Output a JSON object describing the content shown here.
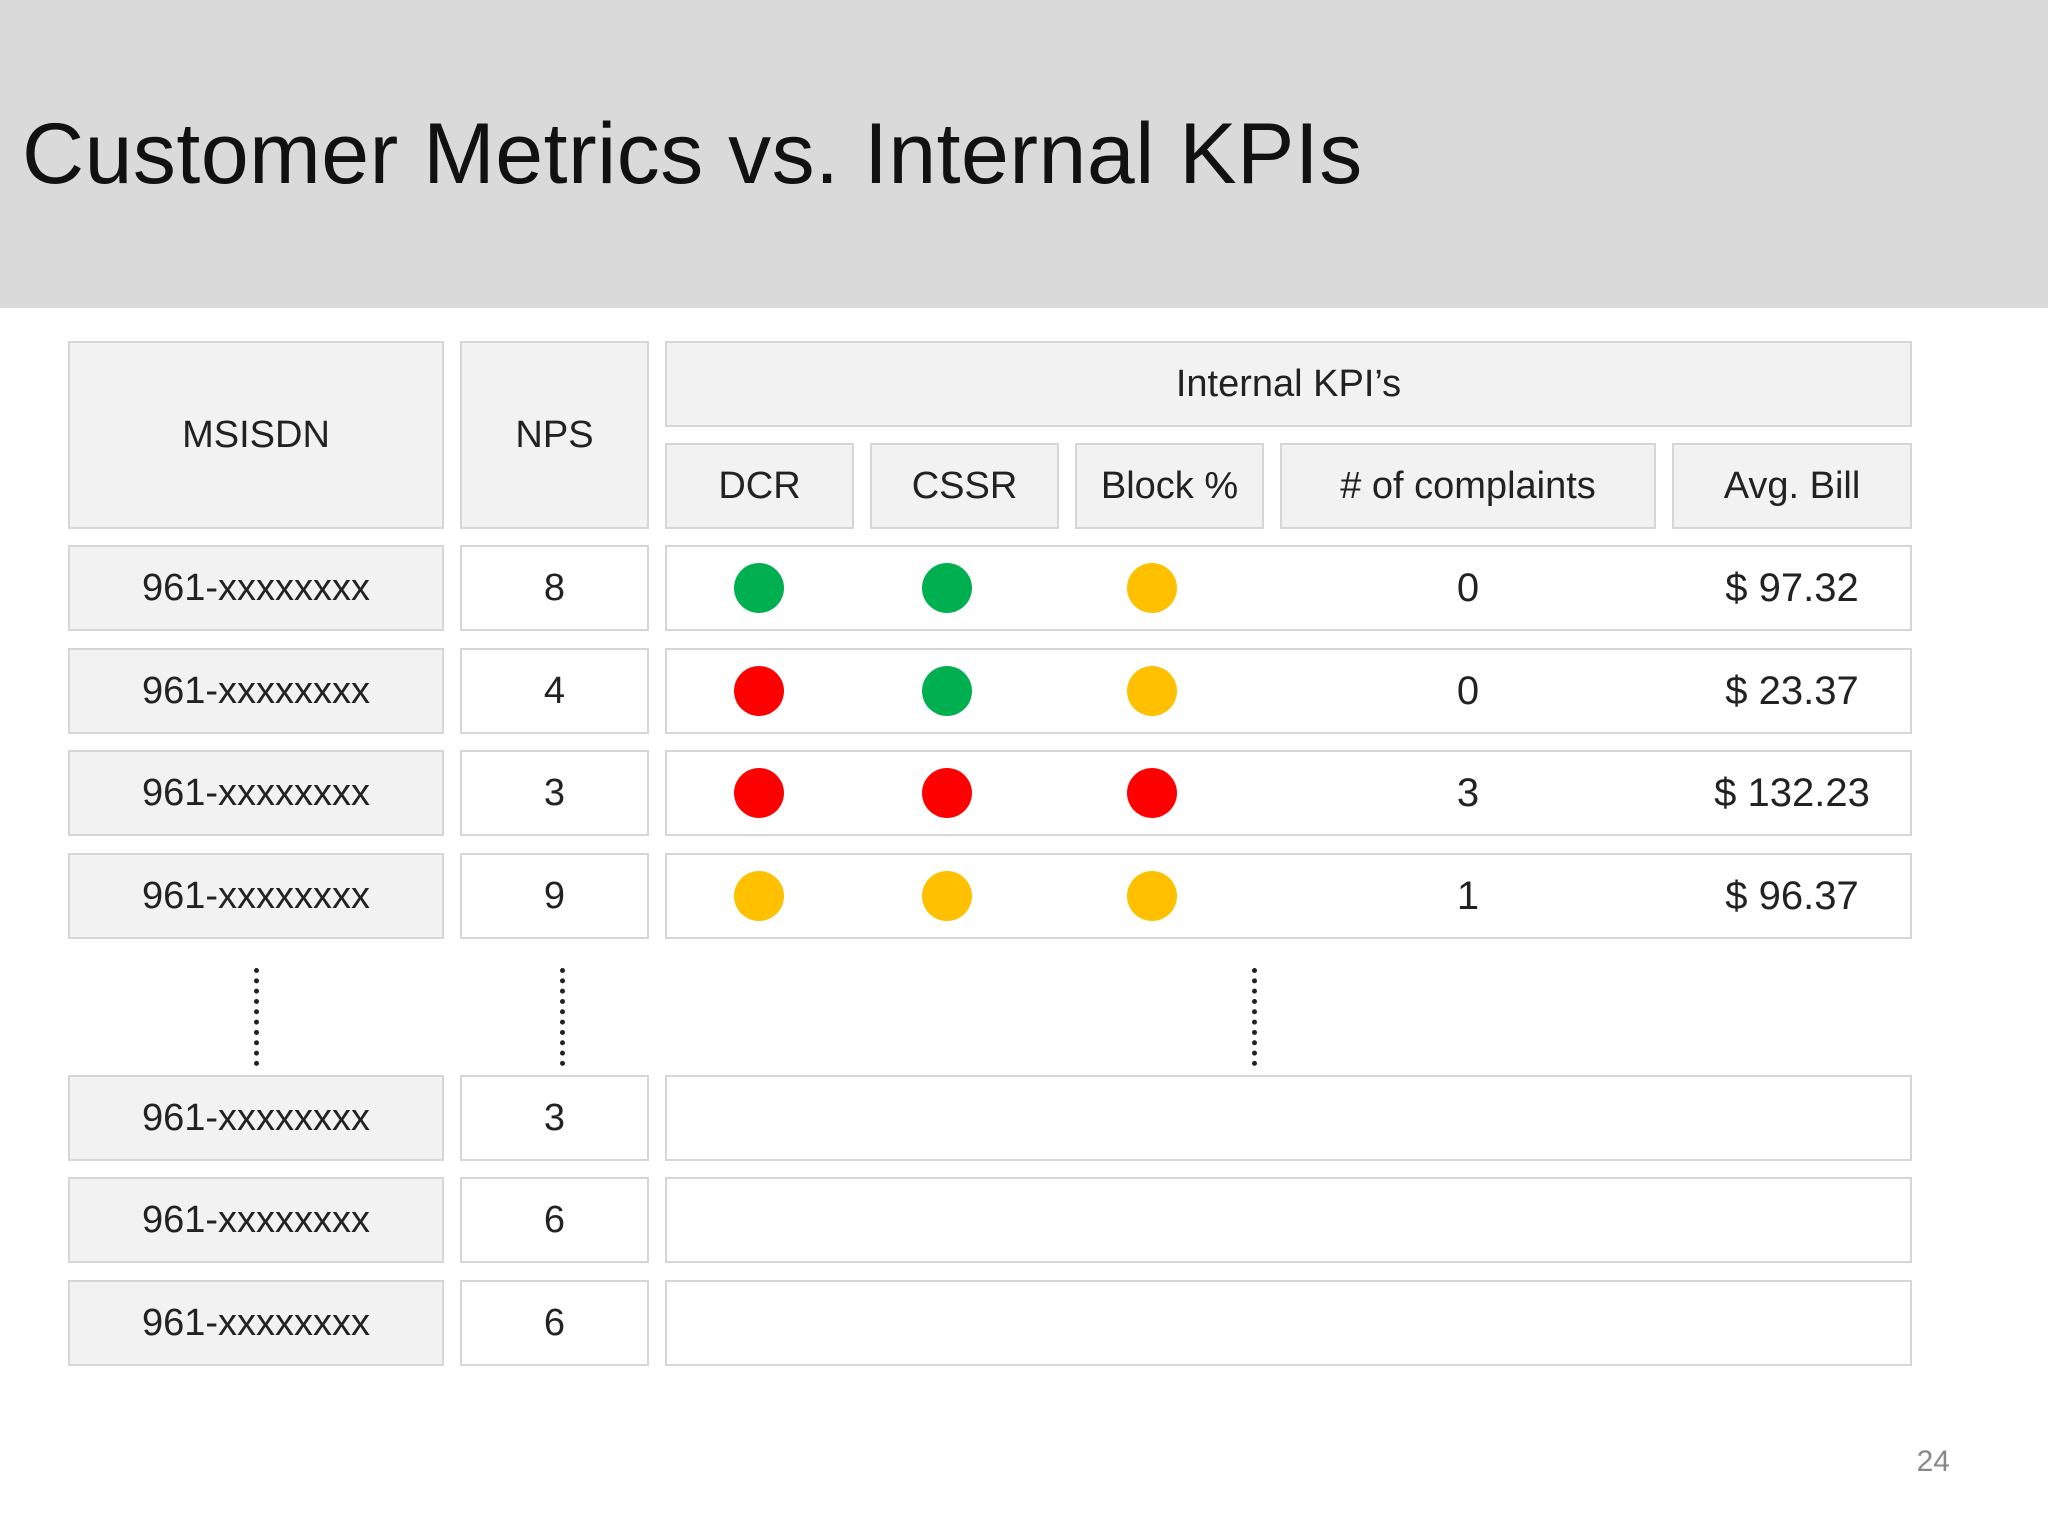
{
  "slide": {
    "title": "Customer Metrics vs. Internal KPIs",
    "page_number": "24"
  },
  "headers": {
    "msisdn": "MSISDN",
    "nps": "NPS",
    "internal_kpis": "Internal KPI’s",
    "dcr": "DCR",
    "cssr": "CSSR",
    "block": "Block %",
    "complaints": "# of complaints",
    "avg_bill": "Avg. Bill"
  },
  "status_colors": {
    "green": "#00b050",
    "yellow": "#ffc000",
    "red": "#ff0000"
  },
  "rows": [
    {
      "msisdn": "961-xxxxxxxx",
      "nps": "8",
      "dcr": "green",
      "cssr": "green",
      "block": "yellow",
      "complaints": "0",
      "avg_bill": "$ 97.32"
    },
    {
      "msisdn": "961-xxxxxxxx",
      "nps": "4",
      "dcr": "red",
      "cssr": "green",
      "block": "yellow",
      "complaints": "0",
      "avg_bill": "$ 23.37"
    },
    {
      "msisdn": "961-xxxxxxxx",
      "nps": "3",
      "dcr": "red",
      "cssr": "red",
      "block": "red",
      "complaints": "3",
      "avg_bill": "$ 132.23"
    },
    {
      "msisdn": "961-xxxxxxxx",
      "nps": "9",
      "dcr": "yellow",
      "cssr": "yellow",
      "block": "yellow",
      "complaints": "1",
      "avg_bill": "$ 96.37"
    }
  ],
  "tail_rows": [
    {
      "msisdn": "961-xxxxxxxx",
      "nps": "3"
    },
    {
      "msisdn": "961-xxxxxxxx",
      "nps": "6"
    },
    {
      "msisdn": "961-xxxxxxxx",
      "nps": "6"
    }
  ]
}
